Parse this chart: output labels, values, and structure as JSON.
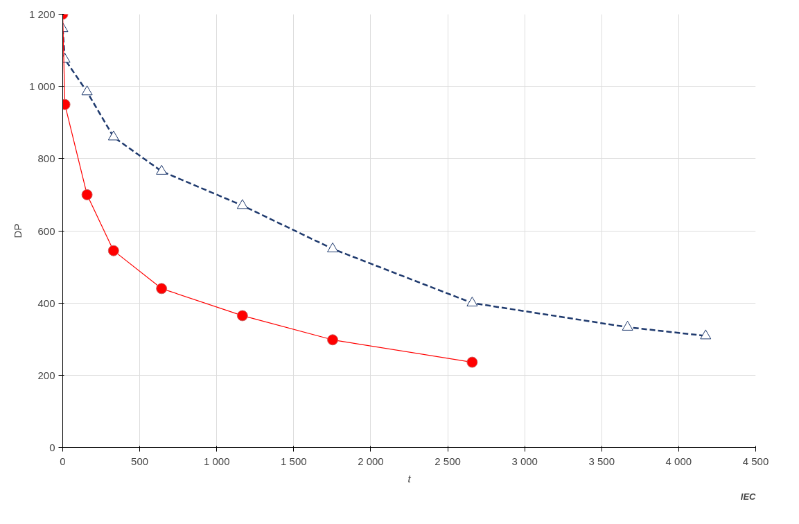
{
  "chart_data": {
    "type": "line",
    "xlabel": "t",
    "ylabel": "DP",
    "annotations": [
      "IEC"
    ],
    "xlim": [
      0,
      4500
    ],
    "ylim": [
      0,
      1200
    ],
    "xticks": [
      0,
      500,
      {
        "value": 1000,
        "label": "1 000"
      },
      {
        "value": 1500,
        "label": "1 500"
      },
      {
        "value": 2000,
        "label": "2 000"
      },
      {
        "value": 2500,
        "label": "2 500"
      },
      {
        "value": 3000,
        "label": "3 000"
      },
      {
        "value": 3500,
        "label": "3 500"
      },
      {
        "value": 4000,
        "label": "4 000"
      },
      {
        "value": 4500,
        "label": "4 500"
      }
    ],
    "yticks": [
      0,
      200,
      400,
      600,
      800,
      {
        "value": 1000,
        "label": "1 000"
      },
      {
        "value": 1200,
        "label": "1 200"
      }
    ],
    "grid": true,
    "series": [
      {
        "color": "#1f3a6e",
        "marker": "triangle",
        "line_style": "dashed",
        "x": [
          0,
          14,
          158,
          330,
          642,
          1167,
          1753,
          2659,
          3668,
          4175
        ],
        "values": [
          1160,
          1075,
          985,
          860,
          765,
          670,
          550,
          400,
          333,
          309
        ]
      },
      {
        "color": "#ff0000",
        "marker": "circle",
        "line_style": "solid",
        "x": [
          0,
          14,
          158,
          330,
          642,
          1167,
          1753,
          2659
        ],
        "values": [
          1200,
          950,
          700,
          545,
          440,
          365,
          298,
          236
        ]
      }
    ]
  }
}
